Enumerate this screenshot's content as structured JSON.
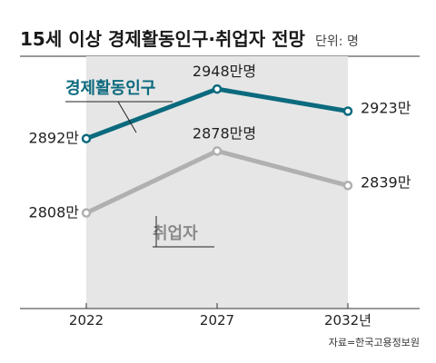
{
  "chart_data": {
    "type": "line",
    "title": "15세 이상 경제활동인구·취업자 전망",
    "unit": "단위: 명",
    "categories": [
      "2022",
      "2027",
      "2032년"
    ],
    "series": [
      {
        "name": "경제활동인구",
        "values": [
          2892,
          2948,
          2923
        ],
        "value_labels": [
          "2892만",
          "2948만명",
          "2923만"
        ],
        "color": "#0b6a7e"
      },
      {
        "name": "취업자",
        "values": [
          2808,
          2878,
          2839
        ],
        "value_labels": [
          "2808만",
          "2878만명",
          "2839만"
        ],
        "color": "#b0b0b0",
        "label_color": "#8a8a8a"
      }
    ],
    "ylim": [
      2700,
      2985
    ],
    "source": "자료=한국고용정보원",
    "highlight_color": "#e6e6e6"
  }
}
